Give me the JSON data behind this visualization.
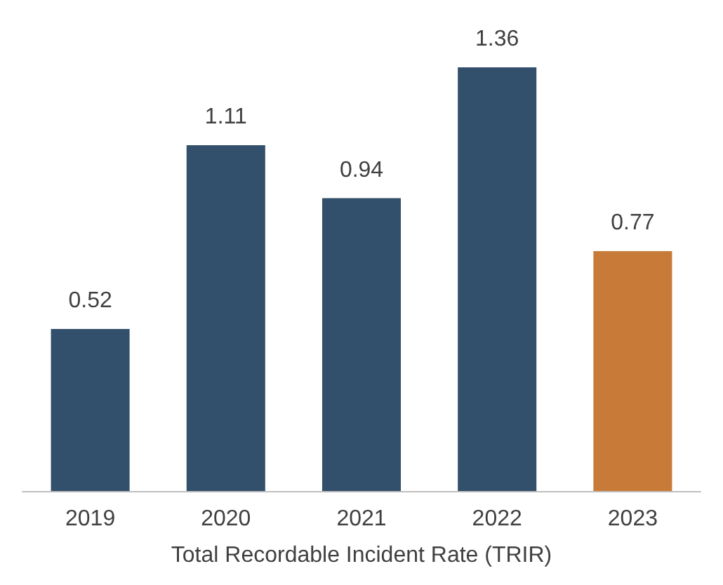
{
  "chart_data": {
    "type": "bar",
    "xlabel": "Total Recordable Incident Rate (TRIR)",
    "categories": [
      "2019",
      "2020",
      "2021",
      "2022",
      "2023"
    ],
    "values": [
      0.52,
      1.11,
      0.94,
      1.36,
      0.77
    ],
    "colors": [
      "#324f6b",
      "#324f6b",
      "#324f6b",
      "#324f6b",
      "#c87b38"
    ],
    "data_labels": true
  }
}
